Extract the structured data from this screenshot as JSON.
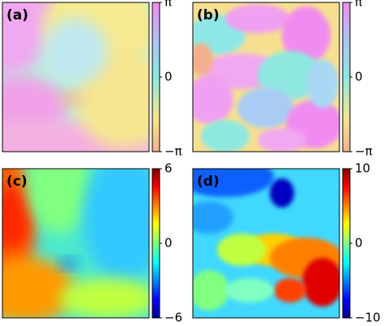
{
  "chart_data": [
    {
      "type": "heatmap",
      "title": "(a)",
      "colormap": "cyclic",
      "clim": [
        -3.14159,
        3.14159
      ],
      "cticks": [
        {
          "value": 3.14159,
          "label": "π"
        },
        0,
        {
          "value": -3.14159,
          "label": "−π"
        }
      ]
    },
    {
      "type": "heatmap",
      "title": "(b)",
      "colormap": "cyclic",
      "clim": [
        -3.14159,
        3.14159
      ],
      "cticks": [
        {
          "value": 3.14159,
          "label": "π"
        },
        0,
        {
          "value": -3.14159,
          "label": "−π"
        }
      ]
    },
    {
      "type": "heatmap",
      "title": "(c)",
      "colormap": "jet",
      "clim": [
        -6,
        6
      ],
      "cticks": [
        6,
        0,
        {
          "value": -6,
          "label": "−6"
        }
      ]
    },
    {
      "type": "heatmap",
      "title": "(d)",
      "colormap": "jet",
      "clim": [
        -10,
        10
      ],
      "cticks": [
        10,
        0,
        {
          "value": -10,
          "label": "−10"
        }
      ]
    }
  ]
}
